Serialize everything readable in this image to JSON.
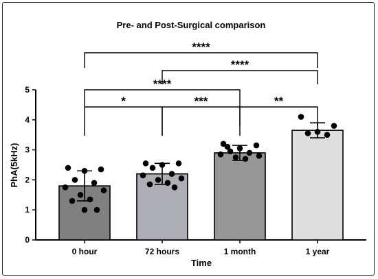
{
  "chart_data": {
    "type": "bar",
    "title": "Pre- and Post-Surgical comparison",
    "xlabel": "Time",
    "ylabel": "PhA(5kHz)",
    "ylim": [
      0,
      5
    ],
    "yticks": [
      "0",
      "1",
      "2",
      "3",
      "4",
      "5"
    ],
    "grid": false,
    "categories": [
      "0 hour",
      "72 hours",
      "1 month",
      "1 year"
    ],
    "values": [
      1.8,
      2.2,
      2.9,
      3.65
    ],
    "sd": [
      0.5,
      0.35,
      0.25,
      0.25
    ],
    "bar_colors": [
      "#808080",
      "#aeaeb6",
      "#969696",
      "#dedede"
    ],
    "points": [
      [
        2.4,
        2.35,
        2.3,
        2.0,
        1.9,
        1.75,
        1.65,
        1.5,
        1.35,
        1.3,
        1.0,
        1.0
      ],
      [
        2.55,
        2.55,
        2.5,
        2.4,
        2.2,
        2.15,
        2.05,
        2.0,
        1.9,
        1.85,
        1.75
      ],
      [
        3.2,
        3.15,
        3.05,
        2.95,
        2.9,
        2.85,
        2.8,
        2.75,
        2.7,
        3.1
      ],
      [
        4.1,
        3.8,
        3.6,
        3.55,
        3.5
      ]
    ],
    "significance": [
      {
        "from": 0,
        "to": 1,
        "label": "*"
      },
      {
        "from": 1,
        "to": 2,
        "label": "***"
      },
      {
        "from": 2,
        "to": 3,
        "label": "**"
      },
      {
        "from": 0,
        "to": 2,
        "label": "****"
      },
      {
        "from": 1,
        "to": 3,
        "label": "****"
      },
      {
        "from": 0,
        "to": 3,
        "label": "****"
      }
    ]
  }
}
